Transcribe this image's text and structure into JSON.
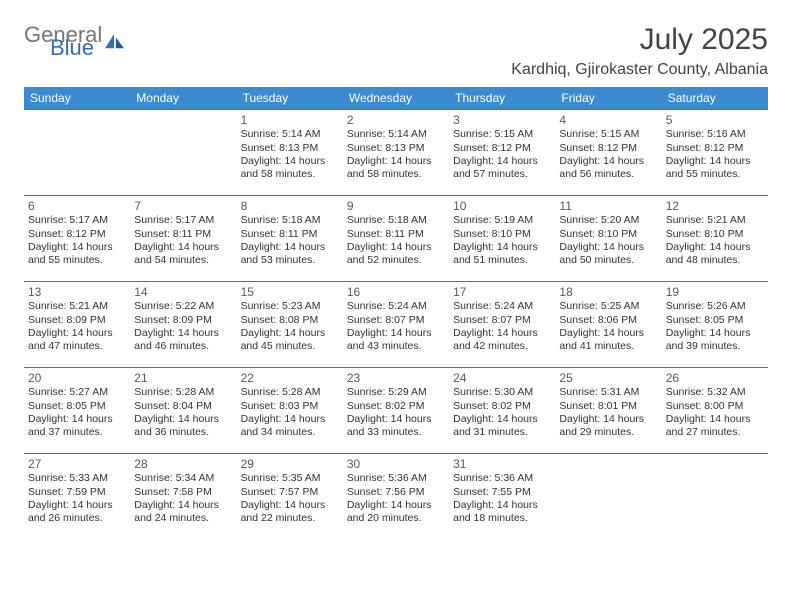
{
  "logo": {
    "text1": "General",
    "text2": "Blue"
  },
  "title": "July 2025",
  "location": "Kardhiq, Gjirokaster County, Albania",
  "header_bg": "#3b8bd0",
  "header_fg": "#ffffff",
  "border_color": "#6a6a6a",
  "day_headers": [
    "Sunday",
    "Monday",
    "Tuesday",
    "Wednesday",
    "Thursday",
    "Friday",
    "Saturday"
  ],
  "weeks": [
    [
      null,
      null,
      {
        "n": "1",
        "sr": "5:14 AM",
        "ss": "8:13 PM",
        "dl": "14 hours and 58 minutes."
      },
      {
        "n": "2",
        "sr": "5:14 AM",
        "ss": "8:13 PM",
        "dl": "14 hours and 58 minutes."
      },
      {
        "n": "3",
        "sr": "5:15 AM",
        "ss": "8:12 PM",
        "dl": "14 hours and 57 minutes."
      },
      {
        "n": "4",
        "sr": "5:15 AM",
        "ss": "8:12 PM",
        "dl": "14 hours and 56 minutes."
      },
      {
        "n": "5",
        "sr": "5:16 AM",
        "ss": "8:12 PM",
        "dl": "14 hours and 55 minutes."
      }
    ],
    [
      {
        "n": "6",
        "sr": "5:17 AM",
        "ss": "8:12 PM",
        "dl": "14 hours and 55 minutes."
      },
      {
        "n": "7",
        "sr": "5:17 AM",
        "ss": "8:11 PM",
        "dl": "14 hours and 54 minutes."
      },
      {
        "n": "8",
        "sr": "5:18 AM",
        "ss": "8:11 PM",
        "dl": "14 hours and 53 minutes."
      },
      {
        "n": "9",
        "sr": "5:18 AM",
        "ss": "8:11 PM",
        "dl": "14 hours and 52 minutes."
      },
      {
        "n": "10",
        "sr": "5:19 AM",
        "ss": "8:10 PM",
        "dl": "14 hours and 51 minutes."
      },
      {
        "n": "11",
        "sr": "5:20 AM",
        "ss": "8:10 PM",
        "dl": "14 hours and 50 minutes."
      },
      {
        "n": "12",
        "sr": "5:21 AM",
        "ss": "8:10 PM",
        "dl": "14 hours and 48 minutes."
      }
    ],
    [
      {
        "n": "13",
        "sr": "5:21 AM",
        "ss": "8:09 PM",
        "dl": "14 hours and 47 minutes."
      },
      {
        "n": "14",
        "sr": "5:22 AM",
        "ss": "8:09 PM",
        "dl": "14 hours and 46 minutes."
      },
      {
        "n": "15",
        "sr": "5:23 AM",
        "ss": "8:08 PM",
        "dl": "14 hours and 45 minutes."
      },
      {
        "n": "16",
        "sr": "5:24 AM",
        "ss": "8:07 PM",
        "dl": "14 hours and 43 minutes."
      },
      {
        "n": "17",
        "sr": "5:24 AM",
        "ss": "8:07 PM",
        "dl": "14 hours and 42 minutes."
      },
      {
        "n": "18",
        "sr": "5:25 AM",
        "ss": "8:06 PM",
        "dl": "14 hours and 41 minutes."
      },
      {
        "n": "19",
        "sr": "5:26 AM",
        "ss": "8:05 PM",
        "dl": "14 hours and 39 minutes."
      }
    ],
    [
      {
        "n": "20",
        "sr": "5:27 AM",
        "ss": "8:05 PM",
        "dl": "14 hours and 37 minutes."
      },
      {
        "n": "21",
        "sr": "5:28 AM",
        "ss": "8:04 PM",
        "dl": "14 hours and 36 minutes."
      },
      {
        "n": "22",
        "sr": "5:28 AM",
        "ss": "8:03 PM",
        "dl": "14 hours and 34 minutes."
      },
      {
        "n": "23",
        "sr": "5:29 AM",
        "ss": "8:02 PM",
        "dl": "14 hours and 33 minutes."
      },
      {
        "n": "24",
        "sr": "5:30 AM",
        "ss": "8:02 PM",
        "dl": "14 hours and 31 minutes."
      },
      {
        "n": "25",
        "sr": "5:31 AM",
        "ss": "8:01 PM",
        "dl": "14 hours and 29 minutes."
      },
      {
        "n": "26",
        "sr": "5:32 AM",
        "ss": "8:00 PM",
        "dl": "14 hours and 27 minutes."
      }
    ],
    [
      {
        "n": "27",
        "sr": "5:33 AM",
        "ss": "7:59 PM",
        "dl": "14 hours and 26 minutes."
      },
      {
        "n": "28",
        "sr": "5:34 AM",
        "ss": "7:58 PM",
        "dl": "14 hours and 24 minutes."
      },
      {
        "n": "29",
        "sr": "5:35 AM",
        "ss": "7:57 PM",
        "dl": "14 hours and 22 minutes."
      },
      {
        "n": "30",
        "sr": "5:36 AM",
        "ss": "7:56 PM",
        "dl": "14 hours and 20 minutes."
      },
      {
        "n": "31",
        "sr": "5:36 AM",
        "ss": "7:55 PM",
        "dl": "14 hours and 18 minutes."
      },
      null,
      null
    ]
  ],
  "labels": {
    "sunrise": "Sunrise:",
    "sunset": "Sunset:",
    "daylight": "Daylight:"
  }
}
